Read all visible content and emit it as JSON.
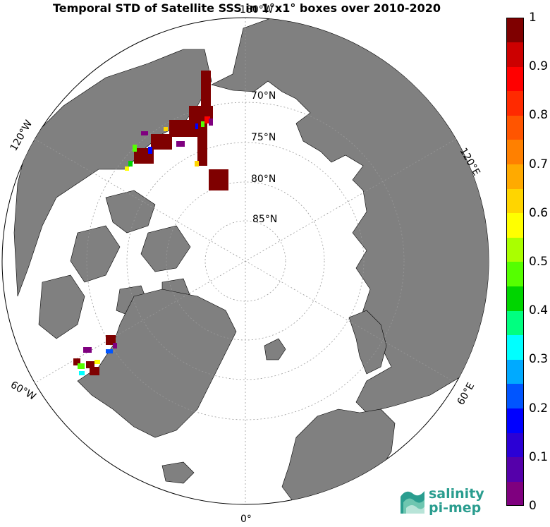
{
  "title": "Temporal STD of Satellite SSS in 1°x1° boxes over 2010-2020",
  "map": {
    "type": "north-polar-stereographic",
    "ocean_color": "#ffffff",
    "land_color": "#808080",
    "latitude_labels": [
      "70°N",
      "75°N",
      "80°N",
      "85°N"
    ],
    "longitude_labels": {
      "top": "180°W",
      "upper_left": "120°W",
      "upper_right": "120°E",
      "lower_left": "60°W",
      "lower_right": "60°E",
      "bottom": "0°"
    }
  },
  "colorbar": {
    "min": 0,
    "max": 1,
    "tick_labels": [
      "0",
      "0.1",
      "0.2",
      "0.3",
      "0.4",
      "0.5",
      "0.6",
      "0.7",
      "0.8",
      "0.9",
      "1"
    ],
    "colors": [
      "#7f007f",
      "#5500aa",
      "#2b00d5",
      "#0000ff",
      "#0055ff",
      "#00aaff",
      "#00ffff",
      "#00ff80",
      "#00d500",
      "#55ff00",
      "#aaff00",
      "#ffff00",
      "#ffd500",
      "#ffaa00",
      "#ff8000",
      "#ff5500",
      "#ff2a00",
      "#ff0000",
      "#cc0000",
      "#7f0000"
    ]
  },
  "logo": {
    "line1": "salinity",
    "line2": "pi-mep"
  }
}
